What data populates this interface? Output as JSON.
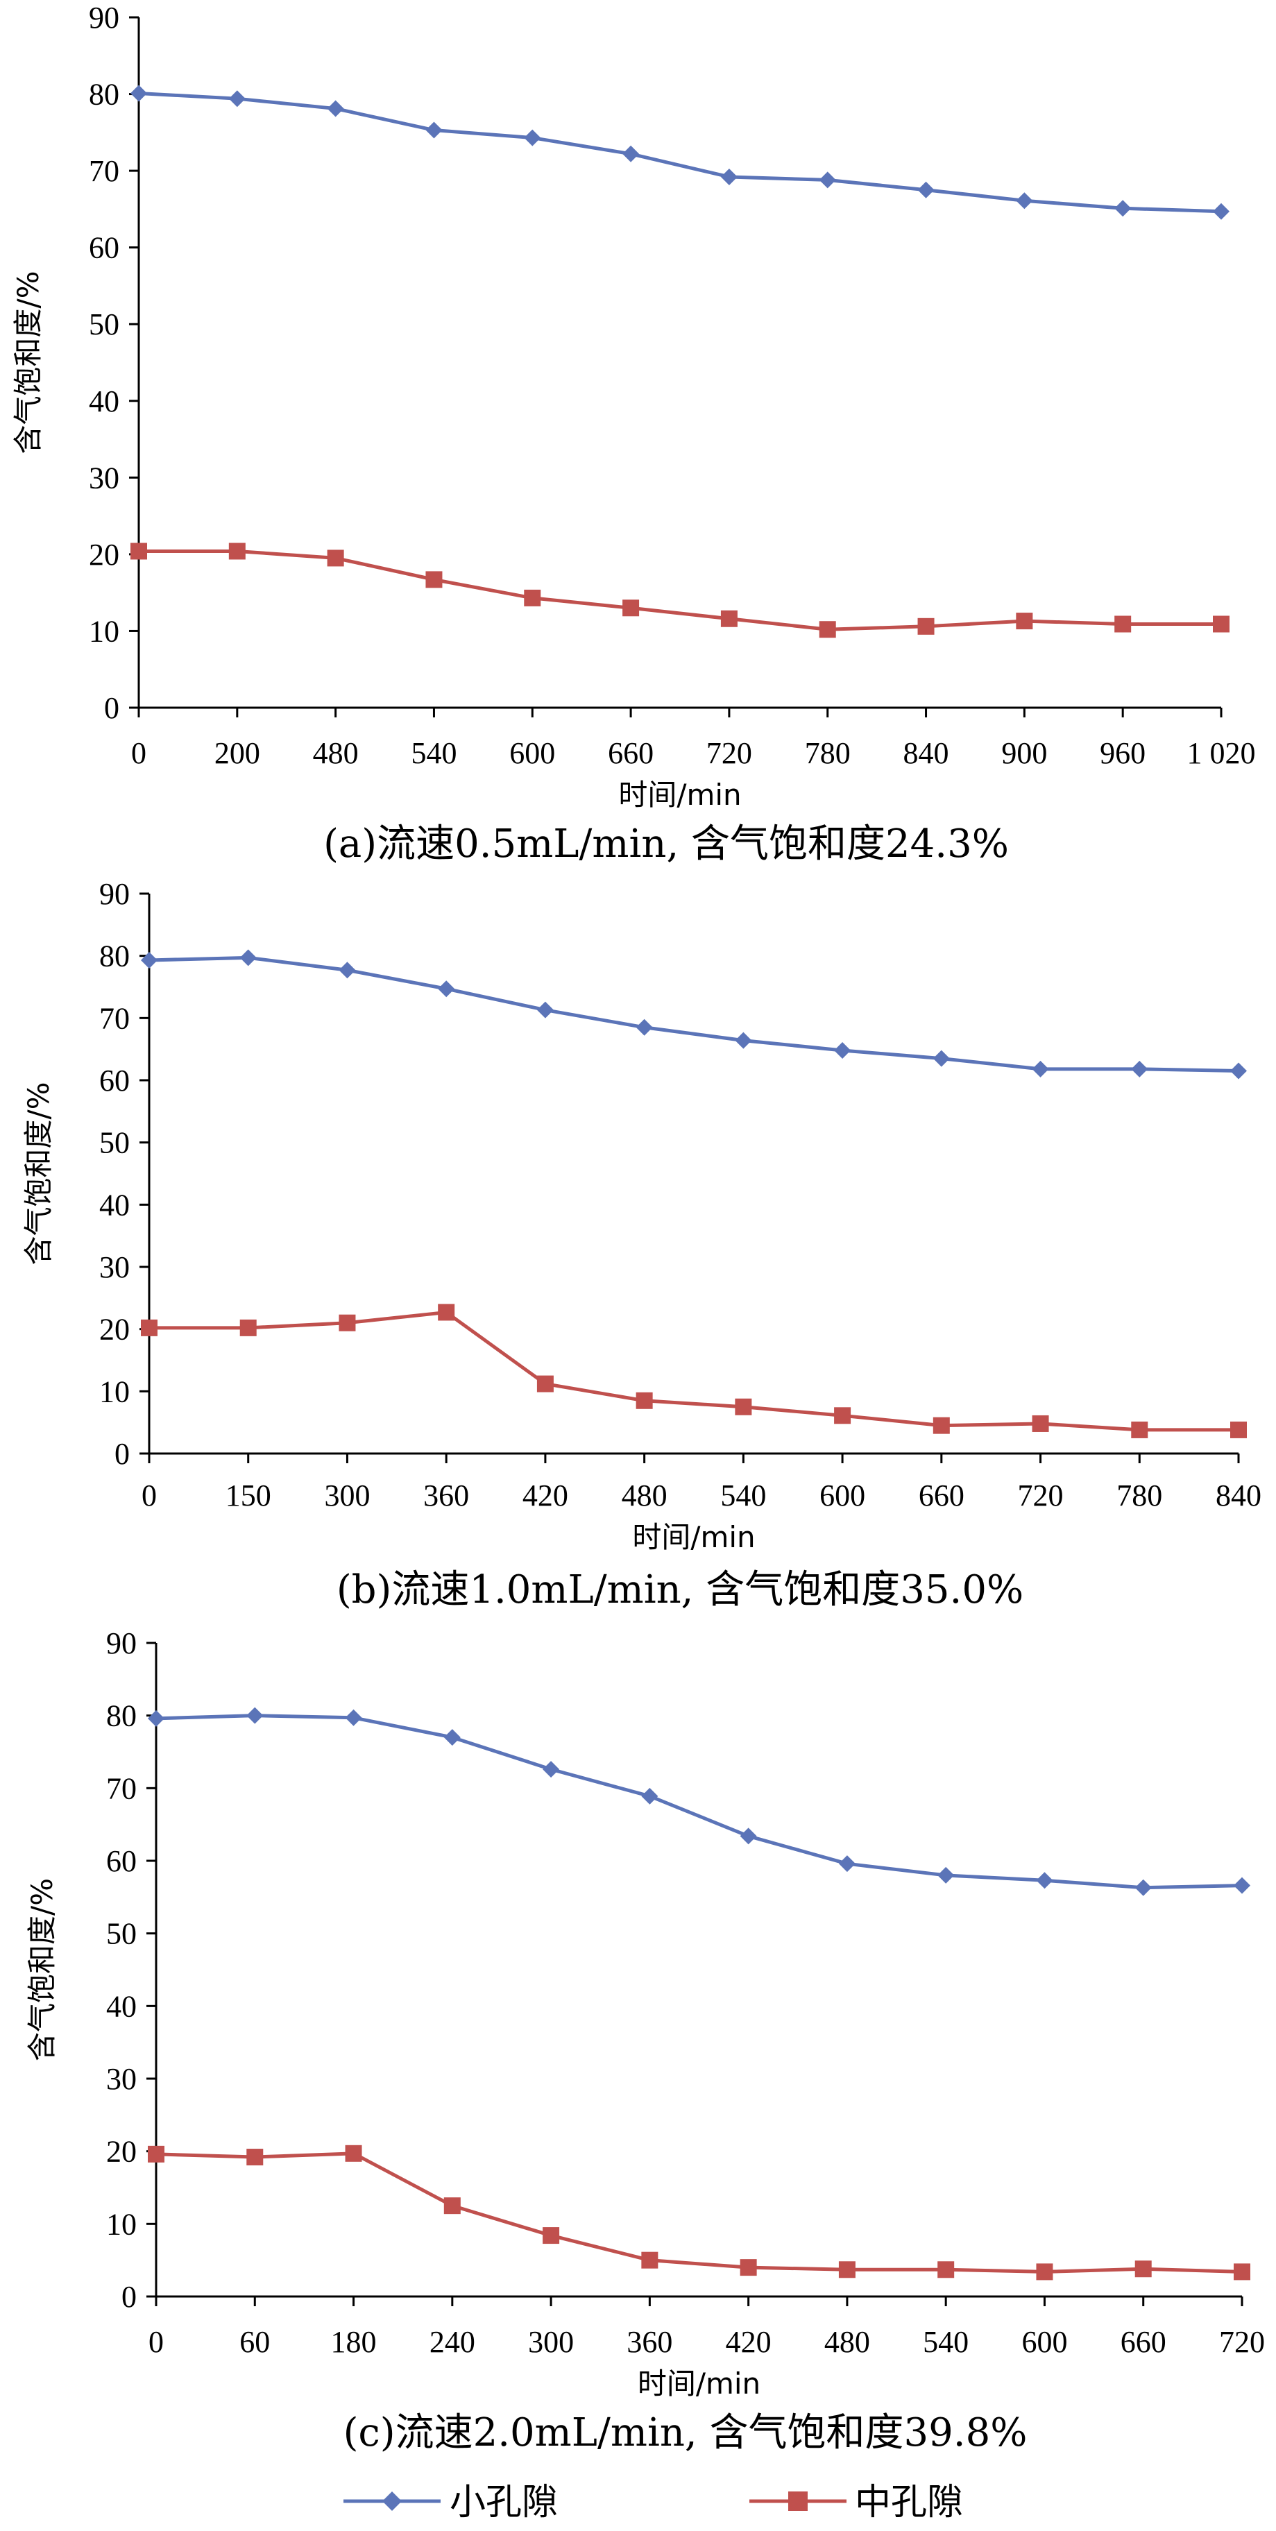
{
  "colors": {
    "small_pore": "#5b74b8",
    "medium_pore": "#c0504d",
    "axis": "#000000"
  },
  "legend": [
    {
      "label": "小孔隙",
      "marker": "diamond",
      "color": "#5b74b8"
    },
    {
      "label": "中孔隙",
      "marker": "square",
      "color": "#c0504d"
    }
  ],
  "chart_data": [
    {
      "type": "line",
      "caption": "(a)流速0.5mL/min, 含气饱和度24.3%",
      "xlabel": "时间/min",
      "ylabel": "含气饱和度/%",
      "ylim": [
        0,
        90
      ],
      "yticks": [
        0,
        10,
        20,
        30,
        40,
        50,
        60,
        70,
        80,
        90
      ],
      "categories": [
        "0",
        "200",
        "480",
        "540",
        "600",
        "660",
        "720",
        "780",
        "840",
        "900",
        "960",
        "1 020"
      ],
      "series": [
        {
          "name": "小孔隙",
          "values": [
            80.1,
            79.4,
            78.1,
            75.3,
            74.3,
            72.2,
            69.2,
            68.8,
            67.5,
            66.1,
            65.1,
            64.7
          ]
        },
        {
          "name": "中孔隙",
          "values": [
            20.4,
            20.4,
            19.5,
            16.7,
            14.3,
            13.0,
            11.6,
            10.2,
            10.6,
            11.3,
            10.9,
            10.9
          ]
        }
      ]
    },
    {
      "type": "line",
      "caption": "(b)流速1.0mL/min, 含气饱和度35.0%",
      "xlabel": "时间/min",
      "ylabel": "含气饱和度/%",
      "ylim": [
        0,
        90
      ],
      "yticks": [
        0,
        10,
        20,
        30,
        40,
        50,
        60,
        70,
        80,
        90
      ],
      "categories": [
        "0",
        "150",
        "300",
        "360",
        "420",
        "480",
        "540",
        "600",
        "660",
        "720",
        "780",
        "840"
      ],
      "series": [
        {
          "name": "小孔隙",
          "values": [
            79.3,
            79.7,
            77.7,
            74.7,
            71.3,
            68.5,
            66.4,
            64.8,
            63.5,
            61.8,
            61.8,
            61.5
          ]
        },
        {
          "name": "中孔隙",
          "values": [
            20.2,
            20.2,
            21.0,
            22.7,
            11.2,
            8.5,
            7.5,
            6.1,
            4.5,
            4.8,
            3.8,
            3.8
          ]
        }
      ]
    },
    {
      "type": "line",
      "caption": "(c)流速2.0mL/min, 含气饱和度39.8%",
      "xlabel": "时间/min",
      "ylabel": "含气饱和度/%",
      "ylim": [
        0,
        90
      ],
      "yticks": [
        0,
        10,
        20,
        30,
        40,
        50,
        60,
        70,
        80,
        90
      ],
      "categories": [
        "0",
        "60",
        "180",
        "240",
        "300",
        "360",
        "420",
        "480",
        "540",
        "600",
        "660",
        "720"
      ],
      "series": [
        {
          "name": "小孔隙",
          "values": [
            79.6,
            80.0,
            79.7,
            77.0,
            72.6,
            68.9,
            63.4,
            59.6,
            58.0,
            57.3,
            56.3,
            56.6
          ]
        },
        {
          "name": "中孔隙",
          "values": [
            19.6,
            19.2,
            19.7,
            12.5,
            8.4,
            5.0,
            4.0,
            3.7,
            3.7,
            3.4,
            3.8,
            3.4
          ]
        }
      ]
    }
  ]
}
